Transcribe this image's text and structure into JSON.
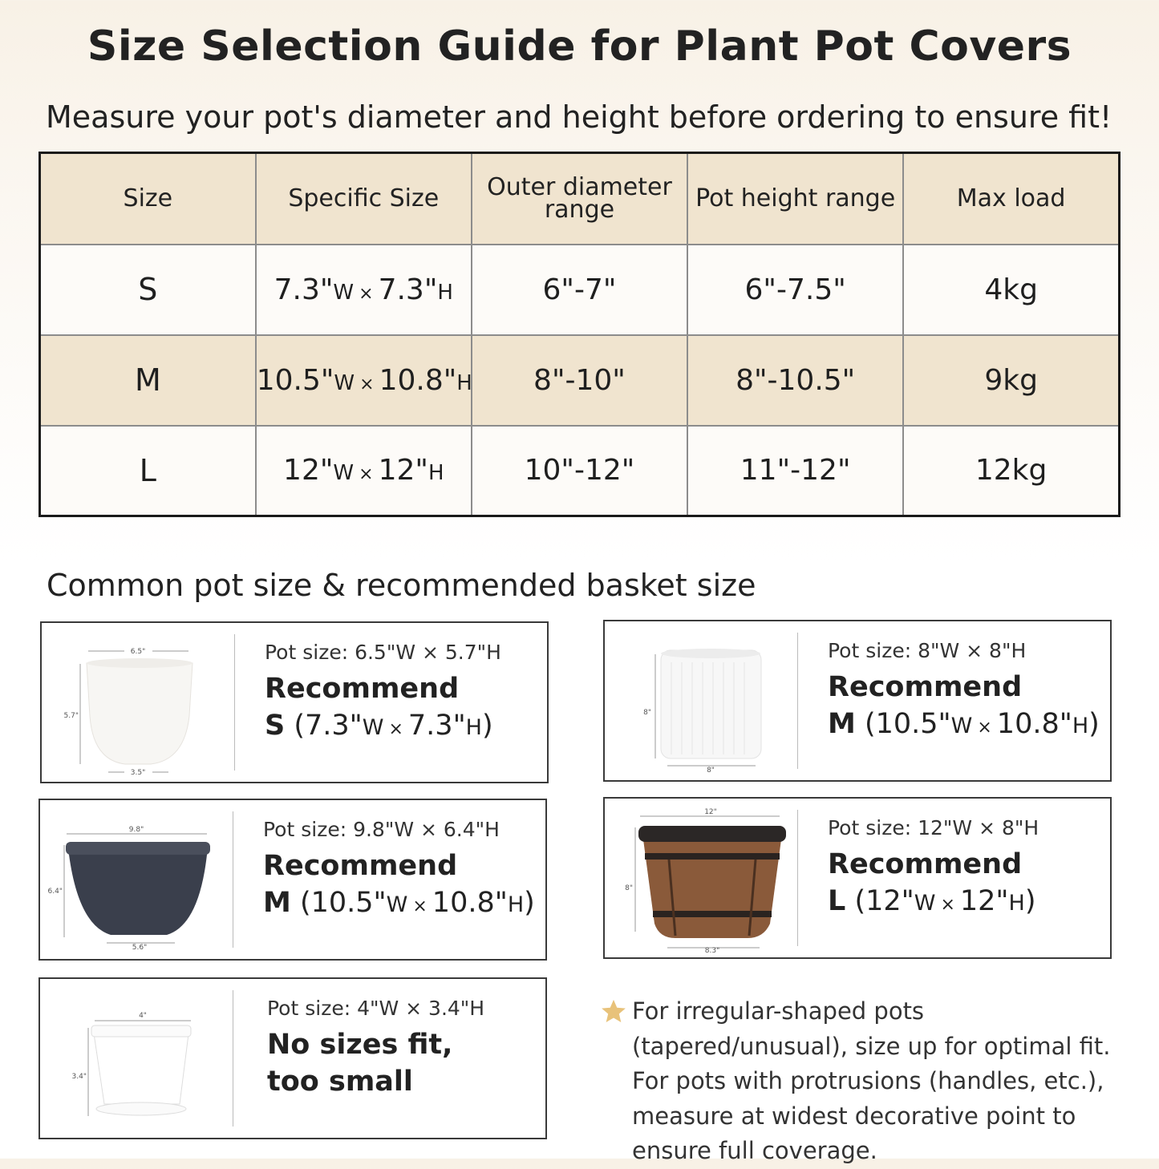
{
  "title": "Size Selection Guide for Plant Pot Covers",
  "subtitle": "Measure your pot's diameter and height before ordering to ensure fit!",
  "table": {
    "headers": [
      "Size",
      "Specific Size",
      "Outer diameter range",
      "Pot height range",
      "Max load"
    ],
    "rows": [
      {
        "size": "S",
        "w": "7.3\"",
        "wu": "W",
        "x": "×",
        "h": "7.3\"",
        "hu": "H",
        "diameter": "6\"-7\"",
        "height": "6\"-7.5\"",
        "load": "4kg"
      },
      {
        "size": "M",
        "w": "10.5\"",
        "wu": "W",
        "x": "×",
        "h": "10.8\"",
        "hu": "H",
        "diameter": "8\"-10\"",
        "height": "8\"-10.5\"",
        "load": "9kg"
      },
      {
        "size": "L",
        "w": "12\"",
        "wu": "W",
        "x": "×",
        "h": "12\"",
        "hu": "H",
        "diameter": "10\"-12\"",
        "height": "11\"-12\"",
        "load": "12kg"
      }
    ]
  },
  "section_title": "Common pot size & recommended basket size",
  "cards": [
    {
      "pot_size": "Pot size: 6.5\"W × 5.7\"H",
      "recommend": "Recommend",
      "rec_size": "S",
      "w": "7.3\"",
      "wu": "W",
      "x": "×",
      "h": "7.3\"",
      "hu": "H",
      "dims": {
        "top": "6.5\"",
        "side": "5.7\"",
        "bottom": "3.5\""
      },
      "pot_color": "#f7f6f3"
    },
    {
      "pot_size": "Pot size: 8\"W × 8\"H",
      "recommend": "Recommend",
      "rec_size": "M",
      "w": "10.5\"",
      "wu": "W",
      "x": "×",
      "h": "10.8\"",
      "hu": "H",
      "dims": {
        "side": "8\"",
        "bottom": "8\""
      },
      "pot_color": "#f7f7f7"
    },
    {
      "pot_size": "Pot size: 9.8\"W × 6.4\"H",
      "recommend": "Recommend",
      "rec_size": "M",
      "w": "10.5\"",
      "wu": "W",
      "x": "×",
      "h": "10.8\"",
      "hu": "H",
      "dims": {
        "top": "9.8\"",
        "side": "6.4\"",
        "bottom": "5.6\""
      },
      "pot_color": "#3a3f4c"
    },
    {
      "pot_size": "Pot size: 12\"W × 8\"H",
      "recommend": "Recommend",
      "rec_size": "L",
      "w": "12\"",
      "wu": "W",
      "x": "×",
      "h": "12\"",
      "hu": "H",
      "dims": {
        "top": "12\"",
        "side": "8\"",
        "bottom": "8.3\""
      },
      "pot_color": "#8a5a3a"
    },
    {
      "pot_size": "Pot size: 4\"W × 3.4\"H",
      "recommend": "No sizes fit,",
      "rec_line2": "too small",
      "dims": {
        "top": "4\"",
        "side": "3.4\""
      },
      "pot_color": "#ffffff"
    }
  ],
  "note": {
    "icon": "star-icon",
    "color": "#e8c27a",
    "text": "For irregular-shaped pots (tapered/unusual), size up for optimal fit.  For pots with protrusions (handles, etc.), measure at widest decorative point to ensure full coverage."
  }
}
